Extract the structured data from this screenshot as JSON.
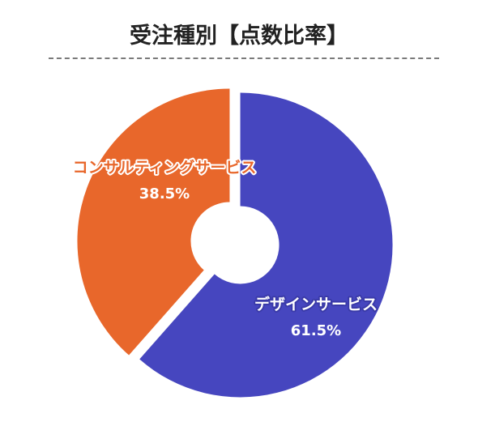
{
  "title": "受注種別【点数比率】",
  "chart_data": {
    "type": "pie",
    "title": "受注種別【点数比率】",
    "donut": true,
    "slices": [
      {
        "label": "デザインサービス",
        "value": 61.5,
        "value_label": "61.5%",
        "color": "#4646bf",
        "label_color": "#ffffff",
        "outline": "#3a3aa8"
      },
      {
        "label": "コンサルティングサービス",
        "value": 38.5,
        "value_label": "38.5%",
        "color": "#e8672b",
        "label_color": "#e8672b",
        "outline": "#ffffff"
      }
    ]
  }
}
